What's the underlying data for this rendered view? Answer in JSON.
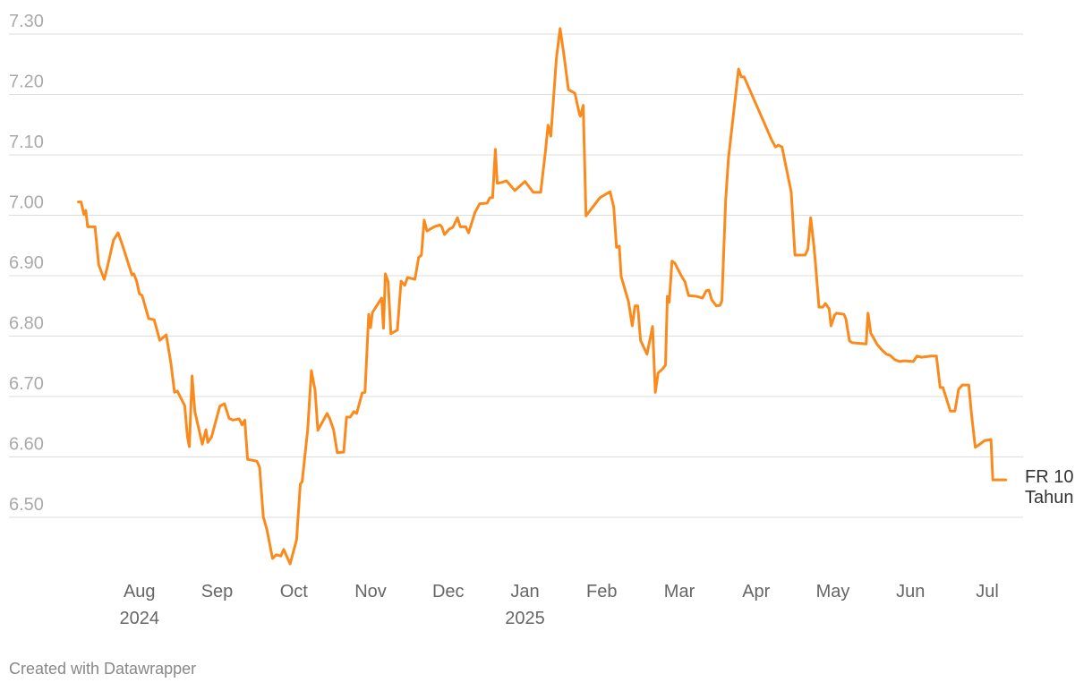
{
  "chart_data": {
    "type": "line",
    "x": [
      2024.517,
      2024.52,
      2024.523,
      2024.525,
      2024.527,
      2024.535,
      2024.539,
      2024.545,
      2024.548,
      2024.555,
      2024.56,
      2024.565,
      2024.575,
      2024.577,
      2024.58,
      2024.583,
      2024.586,
      2024.593,
      2024.599,
      2024.605,
      2024.612,
      2024.617,
      2024.621,
      2024.624,
      2024.632,
      2024.635,
      2024.637,
      2024.64,
      2024.643,
      2024.651,
      2024.655,
      2024.657,
      2024.661,
      2024.67,
      2024.675,
      2024.68,
      2024.684,
      2024.691,
      2024.694,
      2024.697,
      2024.7,
      2024.71,
      2024.713,
      2024.717,
      2024.721,
      2024.727,
      2024.731,
      2024.736,
      2024.739,
      2024.746,
      2024.753,
      2024.757,
      2024.759,
      2024.765,
      2024.769,
      2024.773,
      2024.776,
      2024.786,
      2024.789,
      2024.793,
      2024.797,
      2024.804,
      2024.807,
      2024.811,
      2024.815,
      2024.818,
      2024.824,
      2024.827,
      2024.831,
      2024.833,
      2024.835,
      2024.845,
      2024.847,
      2024.849,
      2024.852,
      2024.855,
      2024.862,
      2024.866,
      2024.87,
      2024.873,
      2024.881,
      2024.885,
      2024.888,
      2024.891,
      2024.894,
      2024.902,
      2024.908,
      2024.91,
      2024.913,
      2024.918,
      2024.922,
      2024.927,
      2024.93,
      2024.936,
      2024.939,
      2024.946,
      2024.951,
      2024.959,
      2024.962,
      2024.965,
      2024.968,
      2024.97,
      2024.974,
      2024.98,
      2024.989,
      2025.0,
      2025.009,
      2025.017,
      2025.022,
      2025.025,
      2025.028,
      2025.034,
      2025.038,
      2025.042,
      2025.047,
      2025.054,
      2025.059,
      2025.06,
      2025.063,
      2025.066,
      2025.081,
      2025.092,
      2025.096,
      2025.099,
      2025.102,
      2025.104,
      2025.112,
      2025.116,
      2025.119,
      2025.122,
      2025.125,
      2025.132,
      2025.138,
      2025.141,
      2025.144,
      2025.149,
      2025.152,
      2025.154,
      2025.156,
      2025.159,
      2025.162,
      2025.169,
      2025.173,
      2025.177,
      2025.185,
      2025.192,
      2025.196,
      2025.199,
      2025.202,
      2025.207,
      2025.211,
      2025.213,
      2025.217,
      2025.22,
      2025.224,
      2025.231,
      2025.234,
      2025.237,
      2025.267,
      2025.271,
      2025.274,
      2025.278,
      2025.288,
      2025.292,
      2025.303,
      2025.306,
      2025.309,
      2025.312,
      2025.314,
      2025.318,
      2025.322,
      2025.325,
      2025.329,
      2025.331,
      2025.335,
      2025.337,
      2025.345,
      2025.347,
      2025.351,
      2025.354,
      2025.369,
      2025.371,
      2025.374,
      2025.381,
      2025.386,
      2025.391,
      2025.395,
      2025.4,
      2025.405,
      2025.41,
      2025.42,
      2025.424,
      2025.429,
      2025.439,
      2025.445,
      2025.449,
      2025.452,
      2025.46,
      2025.465,
      2025.469,
      2025.473,
      2025.48,
      2025.483,
      2025.487,
      2025.491,
      2025.497,
      2025.504,
      2025.506,
      2025.52
    ],
    "series": [
      {
        "name": "FR 10 Tahun",
        "color": "#fa8a1c",
        "values": [
          7.022,
          7.022,
          7.001,
          7.008,
          6.981,
          6.981,
          6.918,
          6.894,
          6.912,
          6.959,
          6.971,
          6.949,
          6.901,
          6.903,
          6.891,
          6.87,
          6.867,
          6.829,
          6.827,
          6.793,
          6.802,
          6.756,
          6.707,
          6.709,
          6.685,
          6.633,
          6.617,
          6.734,
          6.675,
          6.621,
          6.645,
          6.624,
          6.633,
          6.684,
          6.688,
          6.664,
          6.661,
          6.663,
          6.653,
          6.661,
          6.596,
          6.593,
          6.583,
          6.501,
          6.479,
          6.432,
          6.438,
          6.436,
          6.447,
          6.423,
          6.463,
          6.555,
          6.559,
          6.645,
          6.743,
          6.71,
          6.644,
          6.672,
          6.663,
          6.645,
          6.607,
          6.608,
          6.666,
          6.666,
          6.675,
          6.672,
          6.706,
          6.707,
          6.836,
          6.814,
          6.839,
          6.863,
          6.813,
          6.903,
          6.89,
          6.804,
          6.81,
          6.891,
          6.884,
          6.897,
          6.894,
          6.93,
          6.934,
          6.992,
          6.974,
          6.981,
          6.984,
          6.981,
          6.968,
          6.977,
          6.98,
          6.996,
          6.981,
          6.981,
          6.971,
          7.005,
          7.019,
          7.02,
          7.029,
          7.029,
          7.109,
          7.053,
          7.054,
          7.057,
          7.041,
          7.056,
          7.038,
          7.038,
          7.104,
          7.149,
          7.131,
          7.26,
          7.309,
          7.267,
          7.208,
          7.202,
          7.167,
          7.164,
          7.182,
          6.999,
          7.029,
          7.039,
          7.014,
          6.947,
          6.949,
          6.899,
          6.857,
          6.817,
          6.85,
          6.85,
          6.793,
          6.77,
          6.816,
          6.707,
          6.739,
          6.746,
          6.752,
          6.866,
          6.856,
          6.924,
          6.921,
          6.9,
          6.89,
          6.867,
          6.866,
          6.863,
          6.875,
          6.876,
          6.86,
          6.85,
          6.851,
          6.859,
          7.023,
          7.093,
          7.147,
          7.242,
          7.229,
          7.229,
          7.124,
          7.113,
          7.116,
          7.113,
          7.038,
          6.934,
          6.934,
          6.944,
          6.996,
          6.956,
          6.924,
          6.848,
          6.848,
          6.854,
          6.845,
          6.817,
          6.835,
          6.838,
          6.836,
          6.829,
          6.792,
          6.789,
          6.787,
          6.838,
          6.805,
          6.786,
          6.777,
          6.77,
          6.768,
          6.761,
          6.758,
          6.759,
          6.758,
          6.767,
          6.765,
          6.767,
          6.767,
          6.715,
          6.715,
          6.676,
          6.676,
          6.712,
          6.719,
          6.719,
          6.67,
          6.616,
          6.62,
          6.627,
          6.629,
          6.562,
          6.562
        ]
      }
    ],
    "xlim": [
      2024.5,
      2025.55
    ],
    "ylim": [
      6.4,
      7.32
    ],
    "xticks": [
      {
        "value": 2024.583,
        "label": "Aug"
      },
      {
        "value": 2024.667,
        "label": "Sep"
      },
      {
        "value": 2024.75,
        "label": "Oct"
      },
      {
        "value": 2024.833,
        "label": "Nov"
      },
      {
        "value": 2024.917,
        "label": "Dec"
      },
      {
        "value": 2025.0,
        "label": "Jan"
      },
      {
        "value": 2025.083,
        "label": "Feb"
      },
      {
        "value": 2025.167,
        "label": "Mar"
      },
      {
        "value": 2025.25,
        "label": "Apr"
      },
      {
        "value": 2025.333,
        "label": "May"
      },
      {
        "value": 2025.417,
        "label": "Jun"
      },
      {
        "value": 2025.5,
        "label": "Jul"
      }
    ],
    "year_labels": [
      {
        "value": 2024.583,
        "label": "2024"
      },
      {
        "value": 2025.0,
        "label": "2025"
      }
    ],
    "yticks": [
      {
        "value": 6.5,
        "label": "6.50"
      },
      {
        "value": 6.6,
        "label": "6.60"
      },
      {
        "value": 6.7,
        "label": "6.70"
      },
      {
        "value": 6.8,
        "label": "6.80"
      },
      {
        "value": 6.9,
        "label": "6.90"
      },
      {
        "value": 7.0,
        "label": "7.00"
      },
      {
        "value": 7.1,
        "label": "7.10"
      },
      {
        "value": 7.2,
        "label": "7.20"
      },
      {
        "value": 7.3,
        "label": "7.30"
      }
    ],
    "grid": true,
    "footer": "Created with Datawrapper"
  }
}
